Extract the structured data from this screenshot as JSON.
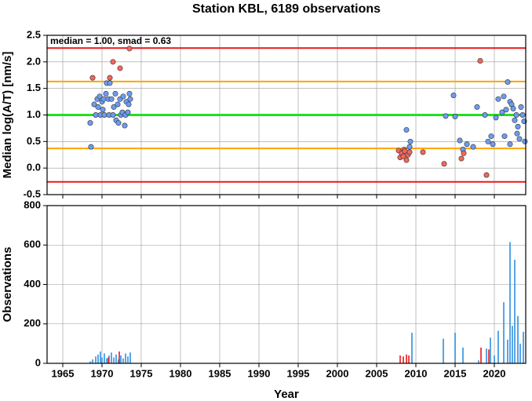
{
  "chart_data": [
    {
      "type": "scatter",
      "title": "Station KBL, 6189 observations",
      "ylabel": "Median log(A/T) [nm/s]",
      "annotation": "median = 1.00, smad = 0.63",
      "xlim": [
        1963,
        2024
      ],
      "xticks": [
        1965,
        1970,
        1975,
        1980,
        1985,
        1990,
        1995,
        2000,
        2005,
        2010,
        2015,
        2020
      ],
      "ylim": [
        -0.5,
        2.5
      ],
      "yticks": [
        {
          "value": -0.5,
          "label": "-0.5"
        },
        {
          "value": 0,
          "label": "0.0"
        },
        {
          "value": 0.5,
          "label": "0.5"
        },
        {
          "value": 1,
          "label": "1.0"
        },
        {
          "value": 1.5,
          "label": "1.5"
        },
        {
          "value": 2,
          "label": "2.0"
        },
        {
          "value": 2.5,
          "label": "2.5"
        }
      ],
      "grid": true,
      "hlines": [
        {
          "value": 2.26,
          "color": "#e8191b"
        },
        {
          "value": -0.26,
          "color": "#e8191b"
        },
        {
          "value": 1.63,
          "color": "#ffa500"
        },
        {
          "value": 0.37,
          "color": "#ffa500"
        },
        {
          "value": 1.0,
          "color": "#22e022"
        }
      ],
      "series": [
        {
          "color": "#6c9cf0",
          "x": [
            1968.5,
            1968.6,
            1969.0,
            1969.2,
            1969.4,
            1969.5,
            1969.7,
            1969.8,
            1970.0,
            1970.1,
            1970.2,
            1970.3,
            1970.5,
            1970.6,
            1970.8,
            1970.9,
            1971.0,
            1971.2,
            1971.4,
            1971.5,
            1971.7,
            1971.8,
            1972.0,
            1972.1,
            1972.3,
            1972.4,
            1972.6,
            1972.7,
            1972.9,
            1973.0,
            1973.1,
            1973.3,
            1973.4,
            1973.5,
            1973.6,
            2008.8,
            2009.2,
            2009.3,
            2013.8,
            2014.8,
            2015.0,
            2015.6,
            2016.0,
            2016.5,
            2017.3,
            2017.8,
            2018.8,
            2019.2,
            2019.6,
            2019.8,
            2020.2,
            2020.5,
            2021.0,
            2021.2,
            2021.3,
            2021.5,
            2021.7,
            2022.0,
            2022.0,
            2022.2,
            2022.4,
            2022.6,
            2022.8,
            2022.9,
            2023.0,
            2023.2,
            2023.4,
            2023.6,
            2023.8,
            2023.9
          ],
          "values": [
            0.85,
            0.4,
            1.2,
            1.0,
            1.3,
            1.15,
            1.35,
            1.0,
            1.25,
            1.1,
            1.3,
            1.0,
            1.4,
            1.6,
            1.3,
            1.0,
            1.6,
            1.3,
            1.0,
            1.15,
            1.4,
            0.9,
            1.2,
            0.85,
            1.3,
            1.0,
            1.05,
            1.35,
            0.8,
            1.0,
            1.25,
            1.05,
            1.2,
            1.4,
            1.3,
            0.72,
            0.4,
            0.5,
            0.98,
            1.37,
            0.97,
            0.52,
            0.35,
            0.45,
            0.4,
            1.15,
            1.0,
            0.5,
            0.6,
            0.45,
            0.95,
            1.3,
            1.05,
            1.35,
            0.6,
            1.1,
            1.62,
            1.25,
            0.45,
            1.2,
            1.12,
            0.9,
            1.0,
            0.65,
            0.78,
            0.55,
            1.15,
            1.0,
            0.88,
            0.5
          ]
        },
        {
          "color": "#f2665a",
          "x": [
            1968.8,
            1971.0,
            1971.4,
            1972.3,
            1973.5,
            2007.8,
            2008.0,
            2008.2,
            2008.4,
            2008.5,
            2008.6,
            2008.8,
            2009.0,
            2009.2,
            2010.9,
            2013.6,
            2015.8,
            2016.1,
            2018.2,
            2019.0
          ],
          "values": [
            1.7,
            1.7,
            2.0,
            1.88,
            2.25,
            0.33,
            0.2,
            0.28,
            0.22,
            0.35,
            0.32,
            0.15,
            0.25,
            0.3,
            0.3,
            0.08,
            0.18,
            0.28,
            2.02,
            -0.13
          ]
        }
      ]
    },
    {
      "type": "bar",
      "xlabel": "Year",
      "ylabel": "Observations",
      "xlim": [
        1963,
        2024
      ],
      "xticks": [
        1965,
        1970,
        1975,
        1980,
        1985,
        1990,
        1995,
        2000,
        2005,
        2010,
        2015,
        2020
      ],
      "ylim": [
        0,
        800
      ],
      "yticks": [
        0,
        200,
        400,
        600,
        800
      ],
      "grid": true,
      "series": [
        {
          "color": "#2f8fe0",
          "x": [
            1968.5,
            1968.8,
            1969.2,
            1969.5,
            1969.8,
            1970.0,
            1970.3,
            1970.6,
            1970.9,
            1971.2,
            1971.5,
            1971.8,
            1972.1,
            1972.4,
            1972.7,
            1973.0,
            1973.3,
            1973.6,
            2009.5,
            2013.5,
            2015.0,
            2016.0,
            2018.0,
            2019.0,
            2019.5,
            2020.0,
            2020.5,
            2021.2,
            2021.7,
            2022.0,
            2022.3,
            2022.6,
            2023.0,
            2023.3,
            2023.7
          ],
          "values": [
            10,
            20,
            35,
            45,
            60,
            30,
            50,
            25,
            40,
            55,
            30,
            45,
            20,
            40,
            25,
            50,
            35,
            55,
            155,
            125,
            155,
            80,
            15,
            75,
            130,
            40,
            165,
            310,
            120,
            615,
            190,
            525,
            240,
            100,
            160
          ]
        },
        {
          "color": "#e8191b",
          "x": [
            1970.8,
            1972.2,
            2008.0,
            2008.4,
            2008.8,
            2009.1,
            2018.3,
            2019.3
          ],
          "values": [
            30,
            60,
            40,
            35,
            45,
            40,
            80,
            70
          ]
        }
      ]
    }
  ]
}
